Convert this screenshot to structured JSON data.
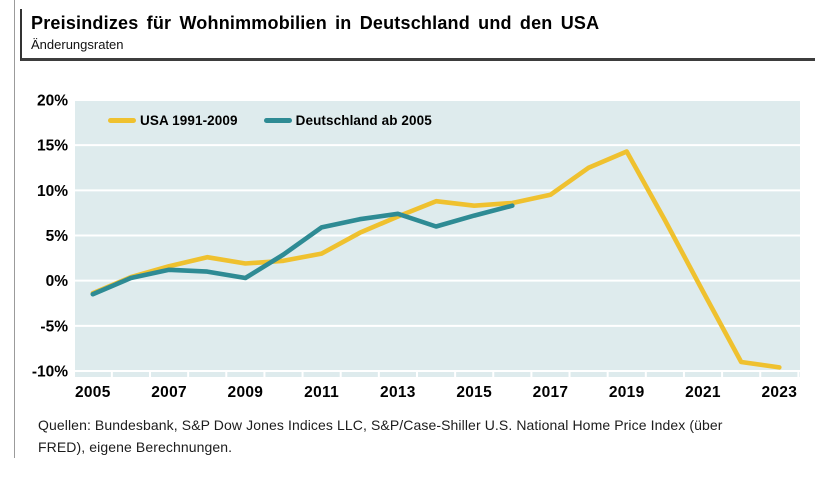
{
  "header": {
    "title": "Preisindizes für Wohnimmobilien in Deutschland und den USA",
    "subtitle": "Änderungsraten"
  },
  "chart_data": {
    "type": "line",
    "x": [
      2005,
      2006,
      2007,
      2008,
      2009,
      2010,
      2011,
      2012,
      2013,
      2014,
      2015,
      2016,
      2017,
      2018,
      2019,
      2020,
      2021,
      2022,
      2023
    ],
    "series": [
      {
        "name": "USA 1991-2009",
        "color": "#EFC12F",
        "values": [
          -1.4,
          0.4,
          1.6,
          2.6,
          1.9,
          2.2,
          3.0,
          5.3,
          7.1,
          8.8,
          8.3,
          8.6,
          9.5,
          12.5,
          14.3,
          6.7,
          -1.2,
          -9.0,
          -9.6
        ]
      },
      {
        "name": "Deutschland ab 2005",
        "color": "#2E8B94",
        "values": [
          -1.5,
          0.3,
          1.2,
          1.0,
          0.3,
          2.9,
          5.9,
          6.8,
          7.4,
          6.0,
          7.2,
          8.3,
          null,
          null,
          null,
          null,
          null,
          null,
          null
        ]
      }
    ],
    "title": "Preisindizes für Wohnimmobilien in Deutschland und den USA",
    "xlabel": "",
    "ylabel": "Änderungsraten",
    "ylim": [
      -10,
      20
    ],
    "ytick_values": [
      20,
      15,
      10,
      5,
      0,
      -5,
      -10
    ],
    "ytick_labels": [
      "20%",
      "15%",
      "10%",
      "5%",
      "0%",
      "-5%",
      "-10%"
    ],
    "xtick_values": [
      2005,
      2007,
      2009,
      2011,
      2013,
      2015,
      2017,
      2019,
      2021,
      2023
    ],
    "xtick_labels": [
      "2005",
      "2007",
      "2009",
      "2011",
      "2013",
      "2015",
      "2017",
      "2019",
      "2021",
      "2023"
    ],
    "grid": "horizontal-white",
    "plot_bg": "#DEEBED",
    "grid_color": "#FFFFFF",
    "legend_position": "inside-top-left"
  },
  "footer": {
    "line1": "Quellen:  Bundesbank,  S&P Dow Jones Indices LLC,  S&P/Case-Shiller U.S. National Home Price Index (über",
    "line2": "FRED), eigene Berechnungen."
  }
}
